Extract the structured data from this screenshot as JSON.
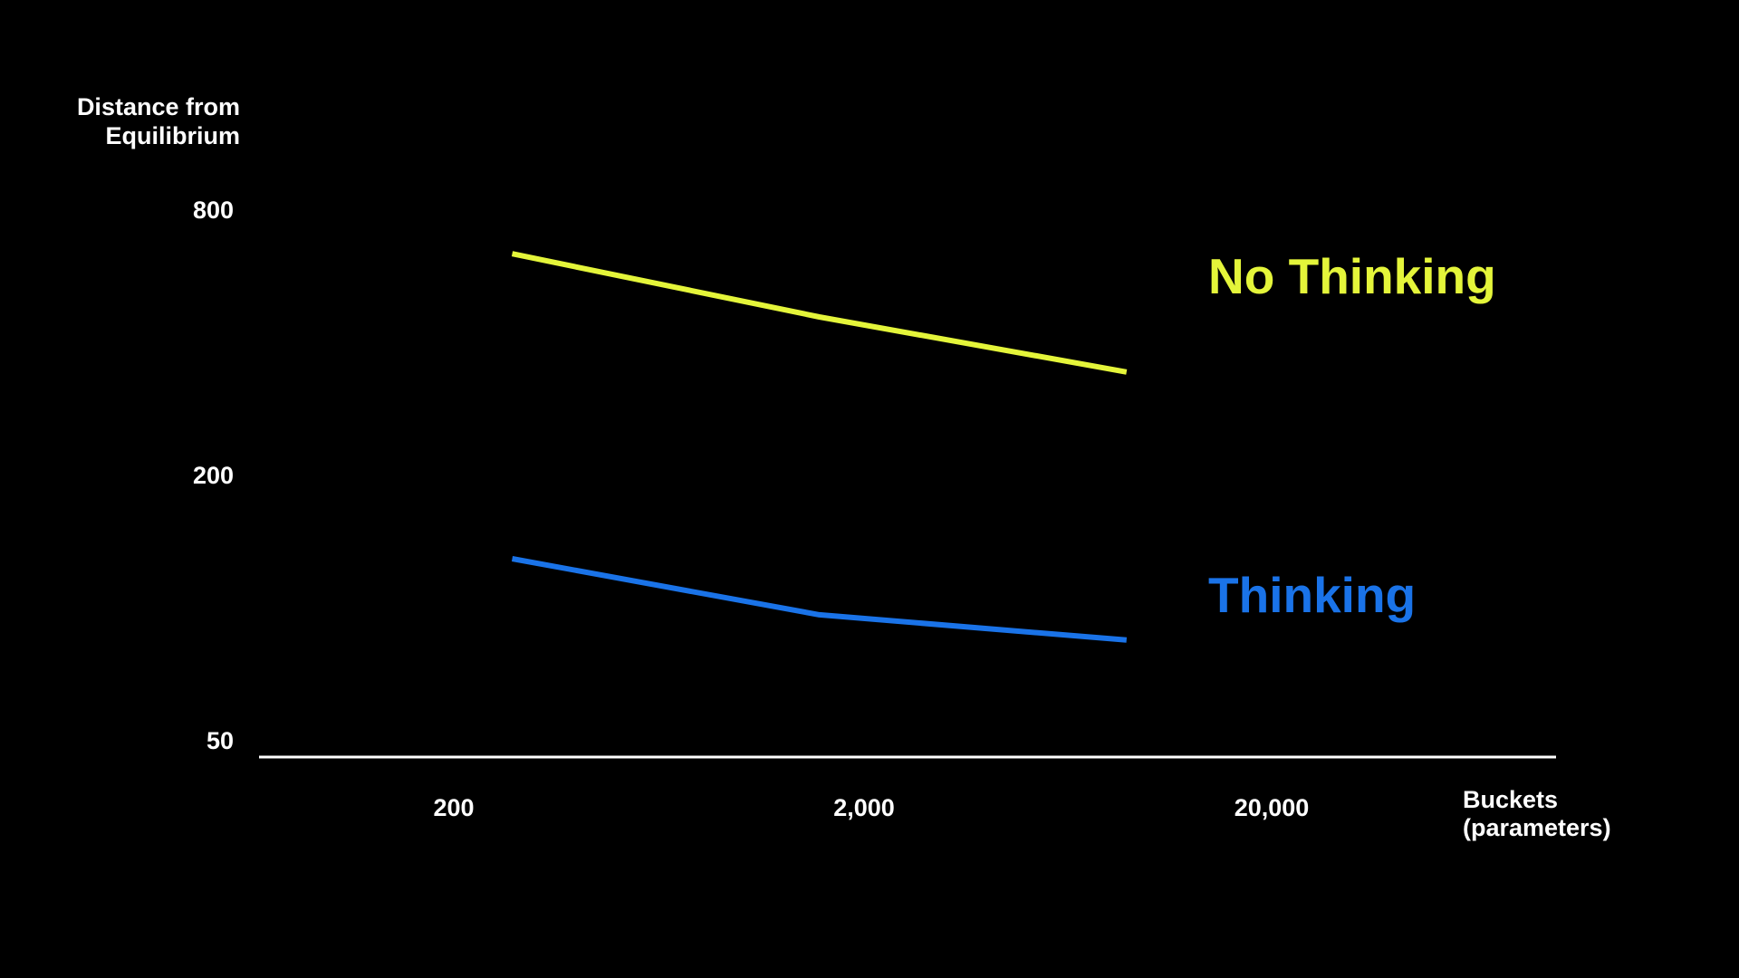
{
  "chart_data": {
    "type": "line",
    "title": "",
    "ylabel_lines": [
      "Distance from",
      "Equilibrium"
    ],
    "xlabel_lines": [
      "Buckets",
      "(parameters)"
    ],
    "x_scale": "log",
    "y_scale": "log",
    "x": [
      200,
      2000,
      20000
    ],
    "x_tick_labels": [
      "200",
      "2,000",
      "20,000"
    ],
    "y_ticks": [
      50,
      200,
      800
    ],
    "y_tick_labels": [
      "50",
      "200",
      "800"
    ],
    "xlim": [
      30,
      500000
    ],
    "ylim": [
      50,
      800
    ],
    "grid": false,
    "legend": "inline labels at right end of lines",
    "series": [
      {
        "name": "No Thinking",
        "color": "#e4f53a",
        "values": [
          640,
          460,
          345
        ]
      },
      {
        "name": "Thinking",
        "color": "#1a73e8",
        "values": [
          130,
          97,
          85
        ]
      }
    ]
  }
}
